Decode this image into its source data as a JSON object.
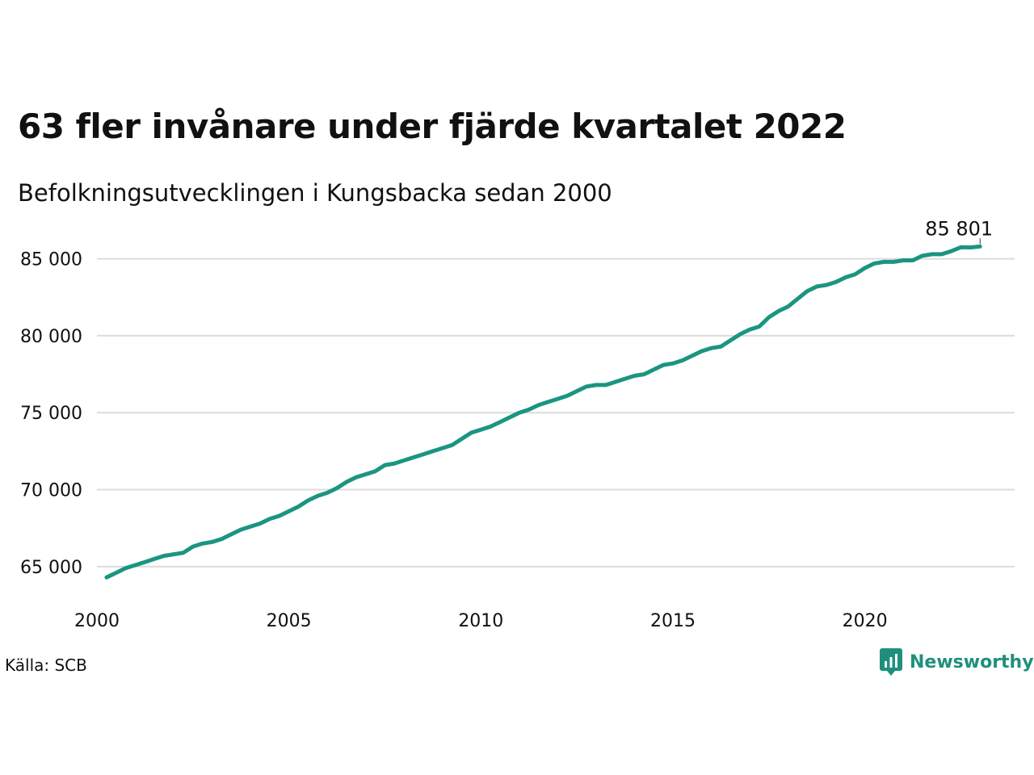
{
  "title": "63 fler invånare under fjärde kvartalet 2022",
  "subtitle": "Befolkningsutvecklingen i Kungsbacka sedan 2000",
  "source": "Källa: SCB",
  "brand": {
    "name": "Newsworthy",
    "icon": "newsworthy-logo-icon"
  },
  "colors": {
    "line": "#1b9580",
    "grid": "#dcdcdc",
    "text": "#111111"
  },
  "chart_data": {
    "type": "line",
    "title": "63 fler invånare under fjärde kvartalet 2022",
    "subtitle": "Befolkningsutvecklingen i Kungsbacka sedan 2000",
    "xlabel": "",
    "ylabel": "",
    "xlim": [
      2000,
      2023.9
    ],
    "ylim": [
      63000,
      86500
    ],
    "x_ticks": [
      2000,
      2005,
      2010,
      2015,
      2020
    ],
    "x_tick_labels": [
      "2000",
      "2005",
      "2010",
      "2015",
      "2020"
    ],
    "y_ticks": [
      65000,
      70000,
      75000,
      80000,
      85000
    ],
    "y_tick_labels": [
      "65 000",
      "70 000",
      "75 000",
      "80 000",
      "85 000"
    ],
    "grid": "horizontal",
    "end_label": "85 801",
    "series": [
      {
        "x": [
          2000.25,
          2000.5,
          2000.75,
          2001.0,
          2001.25,
          2001.5,
          2001.75,
          2002.0,
          2002.25,
          2002.5,
          2002.75,
          2003.0,
          2003.25,
          2003.5,
          2003.75,
          2004.0,
          2004.25,
          2004.5,
          2004.75,
          2005.0,
          2005.25,
          2005.5,
          2005.75,
          2006.0,
          2006.25,
          2006.5,
          2006.75,
          2007.0,
          2007.25,
          2007.5,
          2007.75,
          2008.0,
          2008.25,
          2008.5,
          2008.75,
          2009.0,
          2009.25,
          2009.5,
          2009.75,
          2010.0,
          2010.25,
          2010.5,
          2010.75,
          2011.0,
          2011.25,
          2011.5,
          2011.75,
          2012.0,
          2012.25,
          2012.5,
          2012.75,
          2013.0,
          2013.25,
          2013.5,
          2013.75,
          2014.0,
          2014.25,
          2014.5,
          2014.75,
          2015.0,
          2015.25,
          2015.5,
          2015.75,
          2016.0,
          2016.25,
          2016.5,
          2016.75,
          2017.0,
          2017.25,
          2017.5,
          2017.75,
          2018.0,
          2018.25,
          2018.5,
          2018.75,
          2019.0,
          2019.25,
          2019.5,
          2019.75,
          2020.0,
          2020.25,
          2020.5,
          2020.75,
          2021.0,
          2021.25,
          2021.5,
          2021.75,
          2022.0,
          2022.25,
          2022.5,
          2022.75,
          2023.0
        ],
        "values": [
          64300,
          64600,
          64900,
          65100,
          65300,
          65500,
          65700,
          65800,
          65900,
          66300,
          66500,
          66600,
          66800,
          67100,
          67400,
          67600,
          67800,
          68100,
          68300,
          68600,
          68900,
          69300,
          69600,
          69800,
          70100,
          70500,
          70800,
          71000,
          71200,
          71600,
          71700,
          71900,
          72100,
          72300,
          72500,
          72700,
          72900,
          73300,
          73700,
          73900,
          74100,
          74400,
          74700,
          75000,
          75200,
          75500,
          75700,
          75900,
          76100,
          76400,
          76700,
          76800,
          76800,
          77000,
          77200,
          77400,
          77500,
          77800,
          78100,
          78200,
          78400,
          78700,
          79000,
          79200,
          79300,
          79700,
          80100,
          80400,
          80600,
          81200,
          81600,
          81900,
          82400,
          82900,
          83200,
          83300,
          83500,
          83800,
          84000,
          84400,
          84700,
          84800,
          84800,
          84900,
          84900,
          85200,
          85300,
          85300,
          85500,
          85750,
          85738,
          85801
        ]
      }
    ]
  }
}
